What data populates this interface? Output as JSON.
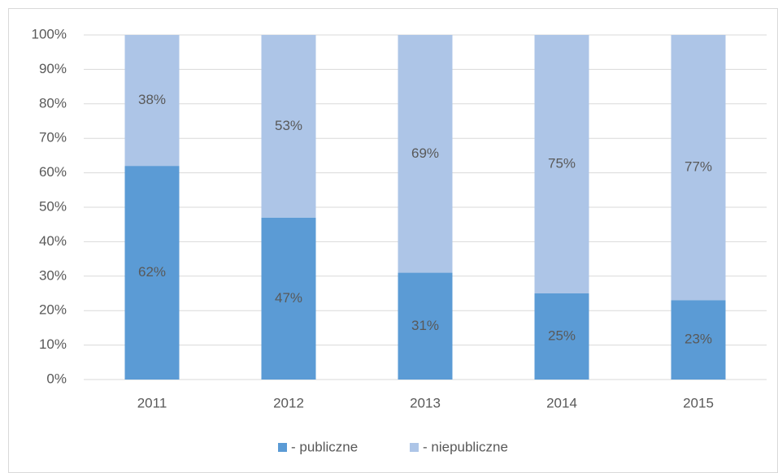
{
  "chart_data": {
    "type": "stacked_bar",
    "categories": [
      "2011",
      "2012",
      "2013",
      "2014",
      "2015"
    ],
    "series": [
      {
        "name": "- publiczne",
        "color": "#5b9bd5",
        "values": [
          62,
          47,
          31,
          25,
          23
        ],
        "value_labels": [
          "62%",
          "47%",
          "31%",
          "25%",
          "23%"
        ]
      },
      {
        "name": "- niepubliczne",
        "color": "#adc5e7",
        "values": [
          38,
          53,
          69,
          75,
          77
        ],
        "value_labels": [
          "38%",
          "53%",
          "69%",
          "75%",
          "77%"
        ]
      }
    ],
    "ylim": [
      0,
      100
    ],
    "yticks": [
      {
        "value": 0,
        "label": "0%"
      },
      {
        "value": 10,
        "label": "10%"
      },
      {
        "value": 20,
        "label": "20%"
      },
      {
        "value": 30,
        "label": "30%"
      },
      {
        "value": 40,
        "label": "40%"
      },
      {
        "value": 50,
        "label": "50%"
      },
      {
        "value": 60,
        "label": "60%"
      },
      {
        "value": 70,
        "label": "70%"
      },
      {
        "value": 80,
        "label": "80%"
      },
      {
        "value": 90,
        "label": "90%"
      },
      {
        "value": 100,
        "label": "100%"
      }
    ],
    "grid": true,
    "legend": "bottom"
  }
}
